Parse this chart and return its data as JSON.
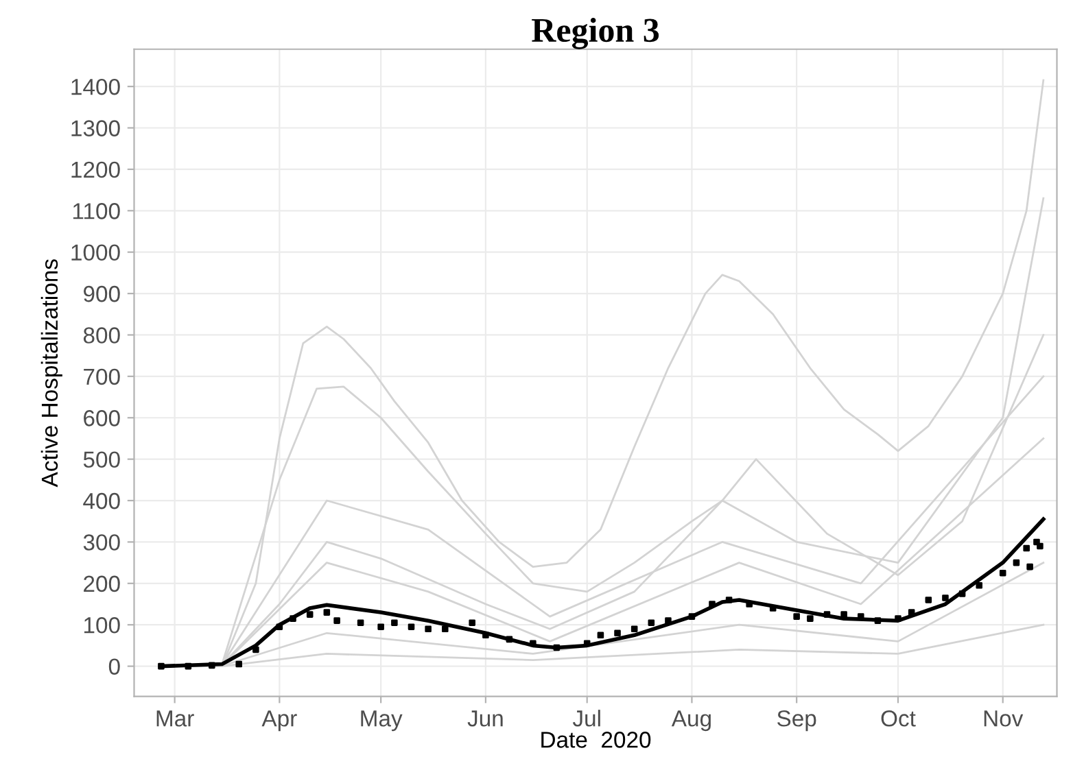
{
  "chart_data": {
    "type": "line",
    "title": "Region 3",
    "xlabel": "Date  2020",
    "ylabel": "Active Hospitalizations",
    "xlim": [
      "2020-02-18",
      "2020-11-17"
    ],
    "ylim": [
      -73,
      1490
    ],
    "xticks": [
      {
        "value": "2020-03-01",
        "label": "Mar"
      },
      {
        "value": "2020-04-01",
        "label": "Apr"
      },
      {
        "value": "2020-05-01",
        "label": "May"
      },
      {
        "value": "2020-06-01",
        "label": "Jun"
      },
      {
        "value": "2020-07-01",
        "label": "Jul"
      },
      {
        "value": "2020-08-01",
        "label": "Aug"
      },
      {
        "value": "2020-09-01",
        "label": "Sep"
      },
      {
        "value": "2020-10-01",
        "label": "Oct"
      },
      {
        "value": "2020-11-01",
        "label": "Nov"
      }
    ],
    "yticks": [
      0,
      100,
      200,
      300,
      400,
      500,
      600,
      700,
      800,
      900,
      1000,
      1100,
      1200,
      1300,
      1400
    ],
    "grid": true,
    "series": [
      {
        "type": "line",
        "color": "#d3d3d3",
        "x": [
          "2020-02-26",
          "2020-03-15",
          "2020-03-25",
          "2020-04-01",
          "2020-04-08",
          "2020-04-15",
          "2020-04-20",
          "2020-04-28",
          "2020-05-05",
          "2020-05-15",
          "2020-05-25",
          "2020-06-05",
          "2020-06-15",
          "2020-06-25",
          "2020-07-05",
          "2020-07-15",
          "2020-07-25",
          "2020-08-05",
          "2020-08-10",
          "2020-08-15",
          "2020-08-25",
          "2020-09-05",
          "2020-09-15",
          "2020-09-25",
          "2020-10-01",
          "2020-10-10",
          "2020-10-20",
          "2020-11-01",
          "2020-11-08",
          "2020-11-13"
        ],
        "values": [
          0,
          0,
          200,
          550,
          780,
          820,
          790,
          720,
          640,
          540,
          400,
          300,
          240,
          250,
          330,
          530,
          720,
          900,
          945,
          930,
          850,
          720,
          620,
          560,
          520,
          580,
          700,
          900,
          1100,
          1415
        ]
      },
      {
        "type": "line",
        "color": "#d3d3d3",
        "x": [
          "2020-02-26",
          "2020-03-15",
          "2020-04-01",
          "2020-04-12",
          "2020-04-20",
          "2020-05-01",
          "2020-05-15",
          "2020-06-01",
          "2020-06-15",
          "2020-07-01",
          "2020-07-15",
          "2020-08-01",
          "2020-08-10",
          "2020-09-01",
          "2020-10-01",
          "2020-11-01",
          "2020-11-13"
        ],
        "values": [
          0,
          5,
          450,
          670,
          675,
          600,
          470,
          320,
          200,
          180,
          250,
          350,
          400,
          300,
          250,
          600,
          1130
        ]
      },
      {
        "type": "line",
        "color": "#d3d3d3",
        "x": [
          "2020-02-26",
          "2020-03-15",
          "2020-04-01",
          "2020-04-15",
          "2020-05-01",
          "2020-06-01",
          "2020-06-20",
          "2020-07-15",
          "2020-08-10",
          "2020-08-20",
          "2020-09-10",
          "2020-10-01",
          "2020-10-20",
          "2020-11-13"
        ],
        "values": [
          0,
          3,
          150,
          300,
          260,
          150,
          90,
          180,
          400,
          500,
          320,
          220,
          350,
          800
        ]
      },
      {
        "type": "line",
        "color": "#d3d3d3",
        "x": [
          "2020-02-26",
          "2020-03-15",
          "2020-04-15",
          "2020-05-15",
          "2020-06-20",
          "2020-08-10",
          "2020-09-20",
          "2020-11-13"
        ],
        "values": [
          0,
          3,
          400,
          330,
          120,
          300,
          200,
          700
        ]
      },
      {
        "type": "line",
        "color": "#d3d3d3",
        "x": [
          "2020-02-26",
          "2020-03-15",
          "2020-04-15",
          "2020-05-15",
          "2020-06-20",
          "2020-08-15",
          "2020-09-20",
          "2020-11-13"
        ],
        "values": [
          0,
          2,
          250,
          180,
          60,
          250,
          150,
          550
        ]
      },
      {
        "type": "line",
        "color": "#d3d3d3",
        "x": [
          "2020-02-26",
          "2020-03-15",
          "2020-04-15",
          "2020-06-15",
          "2020-08-15",
          "2020-10-01",
          "2020-11-13"
        ],
        "values": [
          0,
          1,
          80,
          30,
          100,
          60,
          250
        ]
      },
      {
        "type": "line",
        "color": "#d3d3d3",
        "x": [
          "2020-02-26",
          "2020-03-15",
          "2020-04-15",
          "2020-06-15",
          "2020-08-15",
          "2020-10-01",
          "2020-11-13"
        ],
        "values": [
          0,
          0,
          30,
          15,
          40,
          30,
          100
        ]
      },
      {
        "type": "line",
        "color": "#000000",
        "x": [
          "2020-02-26",
          "2020-03-15",
          "2020-03-25",
          "2020-04-01",
          "2020-04-10",
          "2020-04-15",
          "2020-05-01",
          "2020-05-15",
          "2020-06-01",
          "2020-06-15",
          "2020-06-22",
          "2020-07-01",
          "2020-07-15",
          "2020-08-01",
          "2020-08-10",
          "2020-08-15",
          "2020-09-01",
          "2020-09-15",
          "2020-10-01",
          "2020-10-15",
          "2020-11-01",
          "2020-11-13"
        ],
        "values": [
          0,
          5,
          50,
          100,
          140,
          148,
          130,
          110,
          80,
          50,
          45,
          50,
          75,
          120,
          155,
          160,
          135,
          115,
          110,
          150,
          250,
          355
        ]
      },
      {
        "type": "scatter",
        "marker": "square",
        "color": "#000000",
        "x": [
          "2020-02-26",
          "2020-03-05",
          "2020-03-12",
          "2020-03-20",
          "2020-03-25",
          "2020-04-01",
          "2020-04-05",
          "2020-04-10",
          "2020-04-15",
          "2020-04-18",
          "2020-04-25",
          "2020-05-01",
          "2020-05-05",
          "2020-05-10",
          "2020-05-15",
          "2020-05-20",
          "2020-05-28",
          "2020-06-01",
          "2020-06-08",
          "2020-06-15",
          "2020-06-22",
          "2020-07-01",
          "2020-07-05",
          "2020-07-10",
          "2020-07-15",
          "2020-07-20",
          "2020-07-25",
          "2020-08-01",
          "2020-08-07",
          "2020-08-12",
          "2020-08-18",
          "2020-08-25",
          "2020-09-01",
          "2020-09-05",
          "2020-09-10",
          "2020-09-15",
          "2020-09-20",
          "2020-09-25",
          "2020-10-01",
          "2020-10-05",
          "2020-10-10",
          "2020-10-15",
          "2020-10-20",
          "2020-10-25",
          "2020-11-01",
          "2020-11-05",
          "2020-11-08",
          "2020-11-09",
          "2020-11-11",
          "2020-11-12"
        ],
        "values": [
          0,
          0,
          2,
          5,
          40,
          95,
          115,
          125,
          130,
          110,
          105,
          95,
          105,
          95,
          90,
          90,
          105,
          75,
          65,
          55,
          45,
          55,
          75,
          80,
          90,
          105,
          110,
          120,
          150,
          160,
          150,
          140,
          120,
          115,
          125,
          125,
          120,
          110,
          115,
          130,
          160,
          165,
          175,
          195,
          225,
          250,
          285,
          240,
          300,
          290
        ]
      }
    ]
  }
}
